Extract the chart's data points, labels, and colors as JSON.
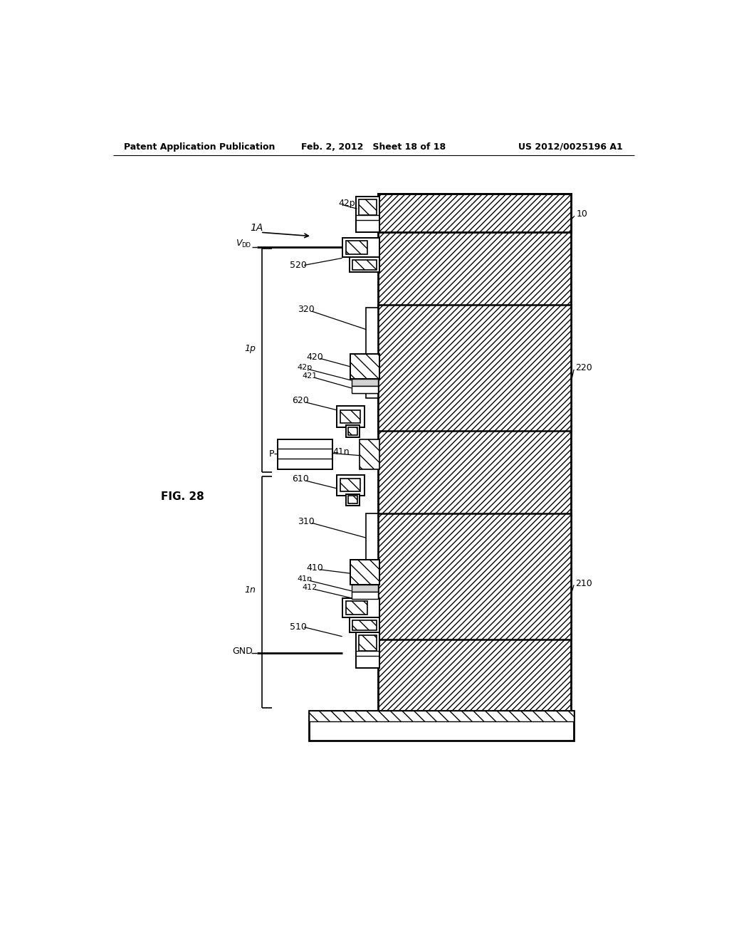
{
  "bg_color": "#ffffff",
  "header_left": "Patent Application Publication",
  "header_mid": "Feb. 2, 2012   Sheet 18 of 18",
  "header_right": "US 2012/0025196 A1",
  "fig_label": "FIG. 28",
  "line_color": "#000000"
}
